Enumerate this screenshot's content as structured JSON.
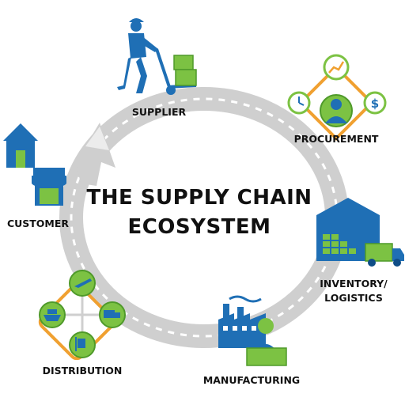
{
  "title": {
    "line1": "THE SUPPLY CHAIN",
    "line2": "ECOSYSTEM"
  },
  "nodes": {
    "supplier": "SUPPLIER",
    "procurement": "PROCUREMENT",
    "inventory_line1": "INVENTORY/",
    "inventory_line2": "LOGISTICS",
    "manufacturing": "MANUFACTURING",
    "distribution": "DISTRIBUTION",
    "customer": "CUSTOMER"
  },
  "colors": {
    "road": "#c9c9c9",
    "road_dash": "#ffffff",
    "blue": "#1f6fb5",
    "blue_dark": "#0f4d87",
    "green": "#7cc243",
    "green_dark": "#4f9a2a",
    "orange": "#f0a030",
    "text": "#111111"
  },
  "icons": [
    "worker-with-dolly-icon",
    "procurement-network-icon",
    "warehouse-icon",
    "truck-icon",
    "factory-icon",
    "distribution-network-icon",
    "house-icon",
    "storefront-icon",
    "cycle-arrow-icon"
  ]
}
